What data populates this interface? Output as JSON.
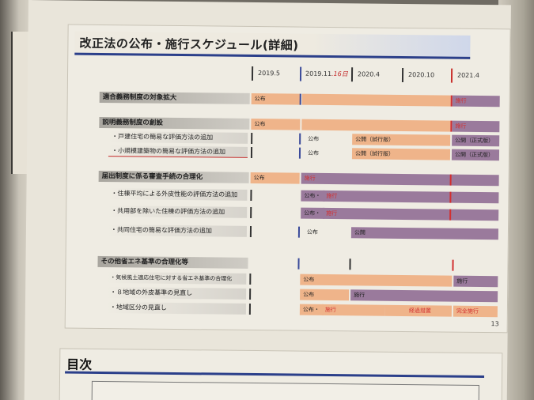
{
  "slide": {
    "title": "改正法の公布・施行スケジュール(詳細)",
    "page_number": "13",
    "dates": [
      "2019.5",
      "2019.11",
      "2020.4",
      "2020.10",
      "2021.4"
    ],
    "handwritten_note": ".16日",
    "rows": [
      {
        "label": "適合義務制度の対象拡大",
        "type": "section",
        "bars": [
          {
            "text": "公布",
            "color": "orange"
          },
          {
            "text": "",
            "color": "orange"
          },
          {
            "text": "施行",
            "color": "purple"
          }
        ]
      },
      {
        "label": "説明義務制度の創設",
        "type": "section",
        "bars": [
          {
            "text": "公布",
            "color": "orange"
          },
          {
            "text": "",
            "color": "orange"
          },
          {
            "text": "施行",
            "color": "purple"
          }
        ]
      },
      {
        "label": "・戸建住宅の簡易な評価方法の追加",
        "type": "sub",
        "bars": [
          {
            "text": "公布",
            "color": "none"
          },
          {
            "text": "公開（試行版）",
            "color": "orange"
          },
          {
            "text": "公開（正式版）",
            "color": "purple"
          }
        ]
      },
      {
        "label": "・小規模建築物の簡易な評価方法の追加",
        "type": "sub",
        "bars": [
          {
            "text": "公布",
            "color": "none"
          },
          {
            "text": "公開（試行版）",
            "color": "orange"
          },
          {
            "text": "公開（正式版）",
            "color": "purple"
          }
        ]
      },
      {
        "label": "届出制度に係る審査手続の合理化",
        "type": "section",
        "bars": [
          {
            "text": "公布",
            "color": "orange"
          },
          {
            "text": "施行",
            "color": "purple"
          }
        ]
      },
      {
        "label": "・住棟平均による外皮性能の評価方法の追加",
        "type": "sub",
        "bars": [
          {
            "text": "公布・",
            "color": "purple"
          },
          {
            "text": "施行",
            "color": "purple"
          }
        ]
      },
      {
        "label": "・共用部を除いた住棟の評価方法の追加",
        "type": "sub",
        "bars": [
          {
            "text": "公布・",
            "color": "purple"
          },
          {
            "text": "施行",
            "color": "purple"
          }
        ]
      },
      {
        "label": "・共同住宅の簡易な評価方法の追加",
        "type": "sub",
        "bars": [
          {
            "text": "公布",
            "color": "none"
          },
          {
            "text": "公開",
            "color": "purple"
          }
        ]
      },
      {
        "label": "その他省エネ基準の合理化等",
        "type": "section",
        "bars": []
      },
      {
        "label": "・気候風土適応住宅に対する省エネ基準の合理化",
        "type": "sub",
        "bars": [
          {
            "text": "公布",
            "color": "orange"
          },
          {
            "text": "施行",
            "color": "purple"
          }
        ]
      },
      {
        "label": "・８地域の外皮基準の見直し",
        "type": "sub",
        "bars": [
          {
            "text": "公布",
            "color": "orange"
          },
          {
            "text": "施行",
            "color": "purple"
          }
        ]
      },
      {
        "label": "・地域区分の見直し",
        "type": "sub",
        "bars": [
          {
            "text": "公布・",
            "color": "orange"
          },
          {
            "text": "施行",
            "color": "orange"
          },
          {
            "text": "経過措置",
            "color": "orange"
          },
          {
            "text": "完全施行",
            "color": "orange"
          }
        ]
      }
    ]
  },
  "toc": {
    "title": "目次"
  },
  "colors": {
    "accent": "#2b3f8a",
    "orange": "#efb48a",
    "purple": "#9a7a9c",
    "red": "#d23030"
  }
}
